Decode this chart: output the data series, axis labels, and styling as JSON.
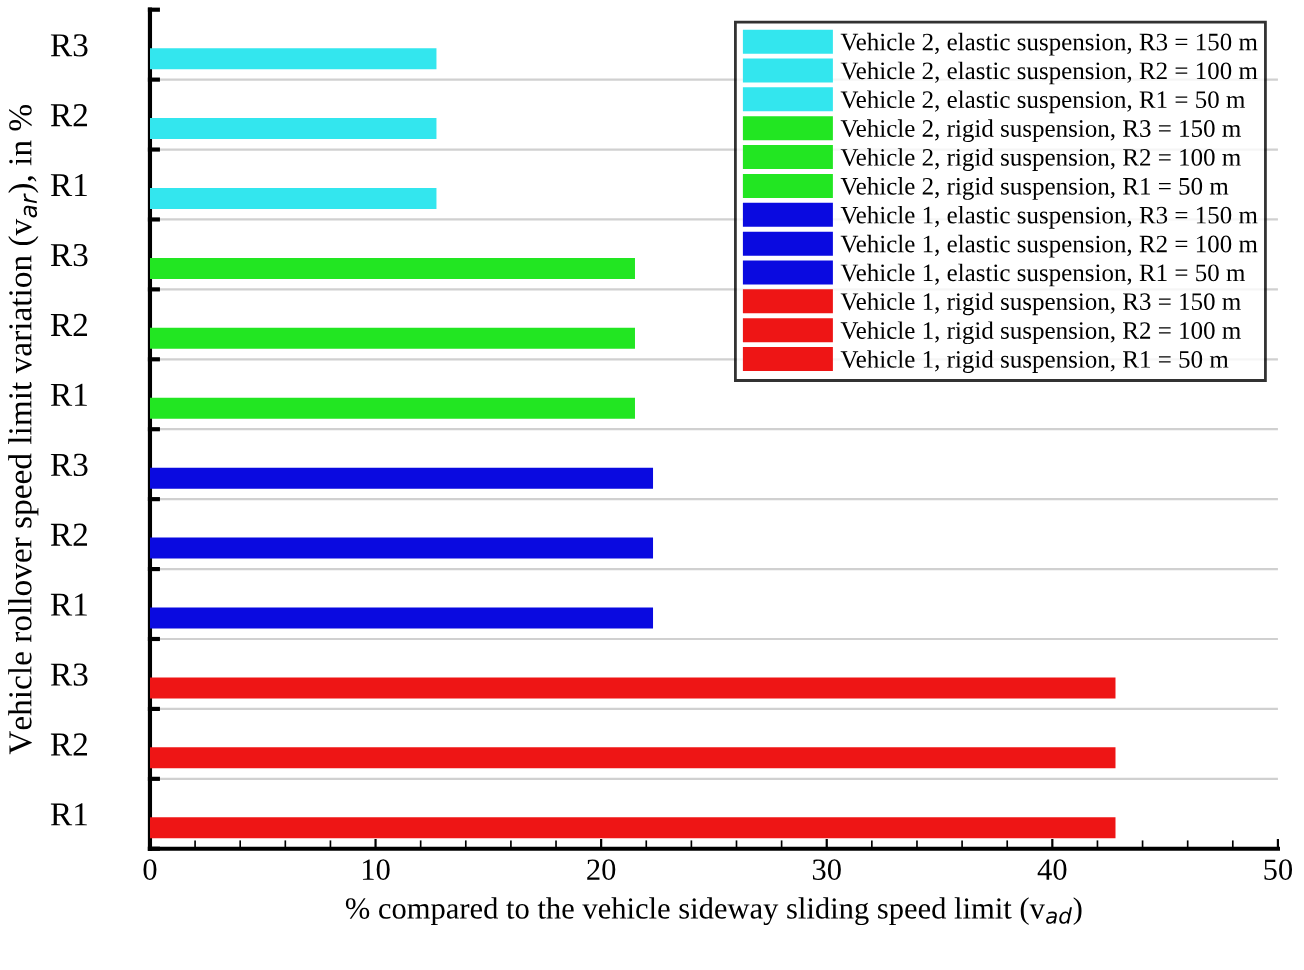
{
  "chart_data": {
    "type": "bar",
    "orientation": "horizontal",
    "xlabel": "% compared to the vehicle sideway sliding speed limit (v$_{ad}$)",
    "ylabel": "Vehicle rollover speed limit variation (v$_{ar}$), in %",
    "categories": [
      "R3",
      "R2",
      "R1",
      "R3",
      "R2",
      "R1",
      "R3",
      "R2",
      "R1",
      "R3",
      "R2",
      "R1"
    ],
    "series": [
      {
        "name": "Vehicle 2, elastic suspension, R3 = 150 m",
        "color": "#33e6ee",
        "values": [
          12.7,
          null,
          null,
          null,
          null,
          null,
          null,
          null,
          null,
          null,
          null,
          null
        ]
      },
      {
        "name": "Vehicle 2, elastic suspension, R2 = 100 m",
        "color": "#33e6ee",
        "values": [
          null,
          12.7,
          null,
          null,
          null,
          null,
          null,
          null,
          null,
          null,
          null,
          null
        ]
      },
      {
        "name": "Vehicle 2, elastic suspension, R1 = 50 m",
        "color": "#33e6ee",
        "values": [
          null,
          null,
          12.7,
          null,
          null,
          null,
          null,
          null,
          null,
          null,
          null,
          null
        ]
      },
      {
        "name": "Vehicle 2, rigid suspension, R3 = 150 m",
        "color": "#22e622",
        "values": [
          null,
          null,
          null,
          21.5,
          null,
          null,
          null,
          null,
          null,
          null,
          null,
          null
        ]
      },
      {
        "name": "Vehicle 2, rigid suspension, R2 = 100 m",
        "color": "#22e622",
        "values": [
          null,
          null,
          null,
          null,
          21.5,
          null,
          null,
          null,
          null,
          null,
          null,
          null
        ]
      },
      {
        "name": "Vehicle 2, rigid suspension, R1 = 50 m",
        "color": "#22e622",
        "values": [
          null,
          null,
          null,
          null,
          null,
          21.5,
          null,
          null,
          null,
          null,
          null,
          null
        ]
      },
      {
        "name": "Vehicle 1, elastic suspension, R3 = 150 m",
        "color": "#0a0ae0",
        "values": [
          null,
          null,
          null,
          null,
          null,
          null,
          22.3,
          null,
          null,
          null,
          null,
          null
        ]
      },
      {
        "name": "Vehicle 1, elastic suspension, R2 = 100 m",
        "color": "#0a0ae0",
        "values": [
          null,
          null,
          null,
          null,
          null,
          null,
          null,
          22.3,
          null,
          null,
          null,
          null
        ]
      },
      {
        "name": "Vehicle 1, elastic suspension, R1 = 50 m",
        "color": "#0a0ae0",
        "values": [
          null,
          null,
          null,
          null,
          null,
          null,
          null,
          null,
          22.3,
          null,
          null,
          null
        ]
      },
      {
        "name": "Vehicle 1, rigid suspension, R3 = 150 m",
        "color": "#ee1515",
        "values": [
          null,
          null,
          null,
          null,
          null,
          null,
          null,
          null,
          null,
          42.8,
          null,
          null
        ]
      },
      {
        "name": "Vehicle 1, rigid suspension, R2 = 100 m",
        "color": "#ee1515",
        "values": [
          null,
          null,
          null,
          null,
          null,
          null,
          null,
          null,
          null,
          null,
          42.8,
          null
        ]
      },
      {
        "name": "Vehicle 1, rigid suspension, R1 = 50 m",
        "color": "#ee1515",
        "values": [
          null,
          null,
          null,
          null,
          null,
          null,
          null,
          null,
          null,
          null,
          null,
          42.8
        ]
      }
    ],
    "xlim": [
      0,
      50
    ],
    "xticks": [
      0,
      10,
      20,
      30,
      40,
      50
    ],
    "grid": "y",
    "legend": "top right"
  }
}
